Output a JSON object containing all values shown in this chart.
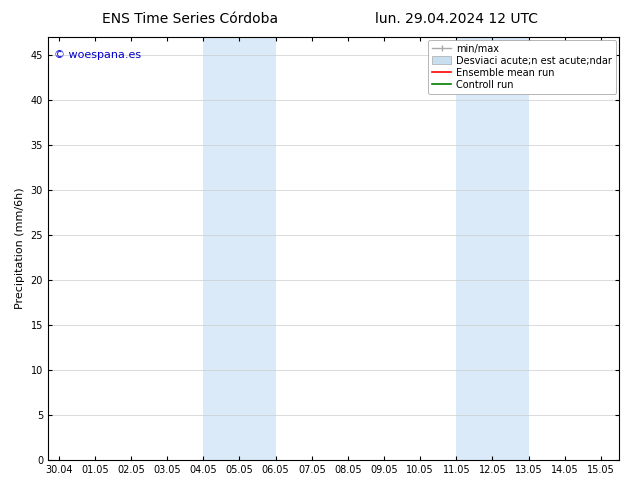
{
  "title_left": "ENS Time Series Córdoba",
  "title_right": "lun. 29.04.2024 12 UTC",
  "ylabel": "Precipitation (mm/6h)",
  "watermark": "© woespana.es",
  "watermark_color": "#0000cc",
  "background_color": "#ffffff",
  "plot_bg_color": "#ffffff",
  "shaded_bands": [
    {
      "x_start": 4.0,
      "x_end": 5.0,
      "color": "#daeaf8"
    },
    {
      "x_start": 5.0,
      "x_end": 6.0,
      "color": "#daeaf8"
    },
    {
      "x_start": 11.0,
      "x_end": 12.0,
      "color": "#daeaf8"
    },
    {
      "x_start": 12.0,
      "x_end": 13.0,
      "color": "#daeaf8"
    }
  ],
  "x_ticks": [
    0,
    1,
    2,
    3,
    4,
    5,
    6,
    7,
    8,
    9,
    10,
    11,
    12,
    13,
    14,
    15
  ],
  "x_tick_labels": [
    "30.04",
    "01.05",
    "02.05",
    "03.05",
    "04.05",
    "05.05",
    "06.05",
    "07.05",
    "08.05",
    "09.05",
    "10.05",
    "11.05",
    "12.05",
    "13.05",
    "14.05",
    "15.05"
  ],
  "x_min": -0.3,
  "x_max": 15.5,
  "y_min": 0,
  "y_max": 47,
  "y_ticks": [
    0,
    5,
    10,
    15,
    20,
    25,
    30,
    35,
    40,
    45
  ],
  "legend_label_minmax": "min/max",
  "legend_label_std": "Desviaci acute;n est acute;ndar",
  "legend_label_mean": "Ensemble mean run",
  "legend_label_control": "Controll run",
  "legend_color_minmax": "#aaaaaa",
  "legend_color_std": "#c8dff0",
  "legend_color_mean": "#ff0000",
  "legend_color_control": "#008000",
  "tick_label_fontsize": 7,
  "axis_label_fontsize": 8,
  "title_fontsize": 10,
  "legend_fontsize": 7,
  "border_color": "#000000",
  "grid_color": "#cccccc"
}
